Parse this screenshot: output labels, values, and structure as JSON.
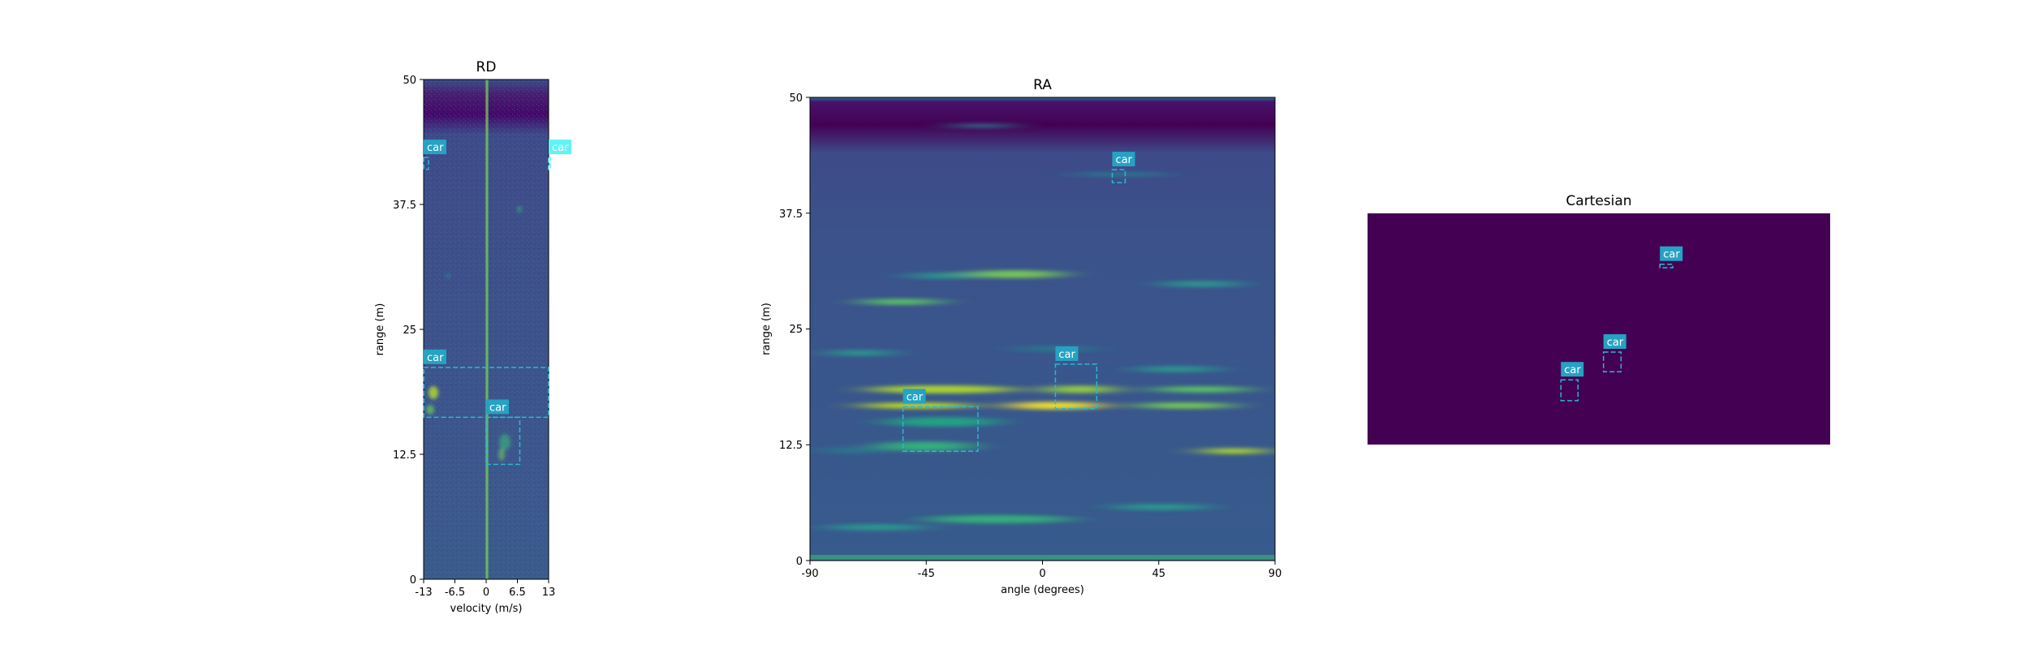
{
  "colors": {
    "viridis_low": "#440154",
    "viridis_mid": "#3b528b",
    "label_bg": "#26a2c2",
    "label_bg_light": "#5ff3f5",
    "box_stroke": "#2bb7d3"
  },
  "chart_data": [
    {
      "type": "heatmap",
      "title": "RD",
      "xlabel": "velocity (m/s)",
      "ylabel": "range (m)",
      "xlim": [
        -13,
        13
      ],
      "ylim": [
        0,
        50
      ],
      "xticks": [
        "-13",
        "-6.5",
        "0",
        "6.5",
        "13"
      ],
      "yticks": [
        "0",
        "12.5",
        "25",
        "37.5",
        "50"
      ],
      "boxes": [
        {
          "label": "car",
          "x0": -13,
          "x1": -12,
          "y0": 41.0,
          "y1": 42.2
        },
        {
          "label": "car",
          "x0": 13,
          "x1": 13.2,
          "y0": 41.0,
          "y1": 42.2,
          "light": true
        },
        {
          "label": "car",
          "x0": -13,
          "x1": 13,
          "y0": 16.2,
          "y1": 21.2
        },
        {
          "label": "car",
          "x0": 0,
          "x1": 7,
          "y0": 11.5,
          "y1": 16.2
        }
      ]
    },
    {
      "type": "heatmap",
      "title": "RA",
      "xlabel": "angle (degrees)",
      "ylabel": "range (m)",
      "xlim": [
        -90,
        90
      ],
      "ylim": [
        0,
        50
      ],
      "xticks": [
        "-90",
        "-45",
        "0",
        "45",
        "90"
      ],
      "yticks": [
        "0",
        "12.5",
        "25",
        "37.5",
        "50"
      ],
      "boxes": [
        {
          "label": "car",
          "x0": 27,
          "x1": 32,
          "y0": 40.8,
          "y1": 42.2
        },
        {
          "label": "car",
          "x0": 5,
          "x1": 21,
          "y0": 16.4,
          "y1": 21.2
        },
        {
          "label": "car",
          "x0": -54,
          "x1": -25,
          "y0": 11.8,
          "y1": 16.6
        }
      ]
    },
    {
      "type": "heatmap",
      "title": "Cartesian",
      "boxes": [
        {
          "label": "car",
          "x0": 0.632,
          "x1": 0.66,
          "y0": 0.765,
          "y1": 0.78
        },
        {
          "label": "car",
          "x0": 0.51,
          "x1": 0.548,
          "y0": 0.315,
          "y1": 0.4
        },
        {
          "label": "car",
          "x0": 0.418,
          "x1": 0.455,
          "y0": 0.19,
          "y1": 0.28
        }
      ]
    }
  ]
}
